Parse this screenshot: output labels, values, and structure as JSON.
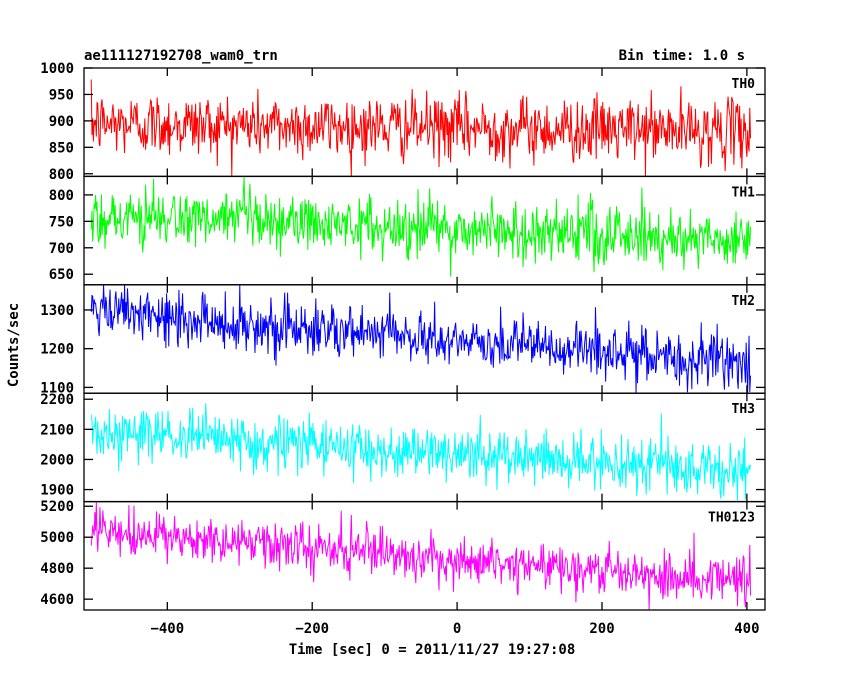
{
  "chart_data": {
    "type": "line",
    "title": "ae111127192708_wam0_trn",
    "subtitle": "Bin time: 1.0 s",
    "xlabel": "Time [sec] 0 = 2011/11/27 19:27:08",
    "ylabel": "Counts/sec",
    "xlim": [
      -515,
      425
    ],
    "x_ticks": [
      -400,
      -200,
      0,
      200,
      400
    ],
    "x_tick_labels": [
      "−400",
      "−200",
      "0",
      "200",
      "400"
    ],
    "x_range": [
      -505,
      405
    ],
    "bin_time": 1.0,
    "grid": false,
    "legend": "none",
    "series": [
      {
        "name": "TH0",
        "color": "#ff0000",
        "ylim": [
          795,
          1000
        ],
        "y_ticks": [
          800,
          850,
          900,
          950,
          1000
        ],
        "y_tick_labels": [
          "800",
          "850",
          "900",
          "950",
          "1000"
        ],
        "start_mean": 895,
        "end_mean": 880,
        "noise": 30
      },
      {
        "name": "TH1",
        "color": "#00ff00",
        "ylim": [
          630,
          835
        ],
        "y_ticks": [
          650,
          700,
          750,
          800
        ],
        "y_tick_labels": [
          "650",
          "700",
          "750",
          "800"
        ],
        "start_mean": 760,
        "end_mean": 715,
        "noise": 28
      },
      {
        "name": "TH2",
        "color": "#0000ff",
        "ylim": [
          1085,
          1365
        ],
        "y_ticks": [
          1100,
          1200,
          1300
        ],
        "y_tick_labels": [
          "1100",
          "1200",
          "1300"
        ],
        "start_mean": 1295,
        "end_mean": 1160,
        "noise": 35
      },
      {
        "name": "TH3",
        "color": "#00ffff",
        "ylim": [
          1860,
          2220
        ],
        "y_ticks": [
          1900,
          2000,
          2100,
          2200
        ],
        "y_tick_labels": [
          "1900",
          "2000",
          "2100",
          "2200"
        ],
        "start_mean": 2090,
        "end_mean": 1960,
        "noise": 45
      },
      {
        "name": "TH0123",
        "color": "#ff00ff",
        "ylim": [
          4530,
          5230
        ],
        "y_ticks": [
          4600,
          4800,
          5000,
          5200
        ],
        "y_tick_labels": [
          "4600",
          "4800",
          "5000",
          "5200"
        ],
        "start_mean": 5030,
        "end_mean": 4720,
        "noise": 75
      }
    ]
  }
}
